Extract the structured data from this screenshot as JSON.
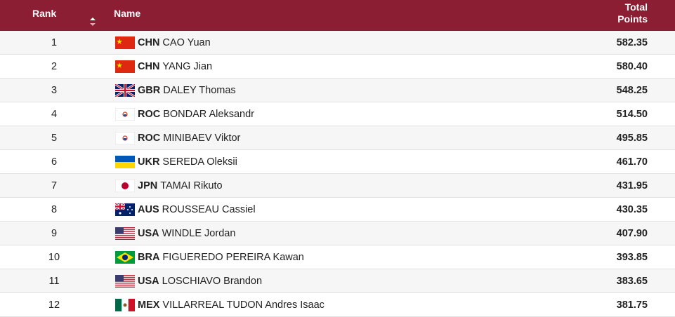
{
  "header": {
    "rank": "Rank",
    "name": "Name",
    "points": "Total Points"
  },
  "rows": [
    {
      "rank": "1",
      "noc": "CHN",
      "name": "CAO Yuan",
      "points": "582.35"
    },
    {
      "rank": "2",
      "noc": "CHN",
      "name": "YANG Jian",
      "points": "580.40"
    },
    {
      "rank": "3",
      "noc": "GBR",
      "name": "DALEY Thomas",
      "points": "548.25"
    },
    {
      "rank": "4",
      "noc": "ROC",
      "name": "BONDAR Aleksandr",
      "points": "514.50"
    },
    {
      "rank": "5",
      "noc": "ROC",
      "name": "MINIBAEV Viktor",
      "points": "495.85"
    },
    {
      "rank": "6",
      "noc": "UKR",
      "name": "SEREDA Oleksii",
      "points": "461.70"
    },
    {
      "rank": "7",
      "noc": "JPN",
      "name": "TAMAI Rikuto",
      "points": "431.95"
    },
    {
      "rank": "8",
      "noc": "AUS",
      "name": "ROUSSEAU Cassiel",
      "points": "430.35"
    },
    {
      "rank": "9",
      "noc": "USA",
      "name": "WINDLE Jordan",
      "points": "407.90"
    },
    {
      "rank": "10",
      "noc": "BRA",
      "name": "FIGUEREDO PEREIRA Kawan",
      "points": "393.85"
    },
    {
      "rank": "11",
      "noc": "USA",
      "name": "LOSCHIAVO Brandon",
      "points": "383.65"
    },
    {
      "rank": "12",
      "noc": "MEX",
      "name": "VILLARREAL TUDON Andres Isaac",
      "points": "381.75"
    }
  ]
}
